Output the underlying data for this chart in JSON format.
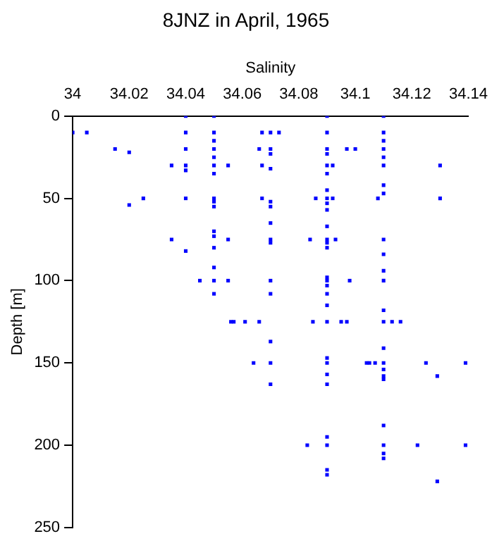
{
  "chart_data": {
    "type": "scatter",
    "title": "8JNZ in April, 1965",
    "xlabel": "Salinity",
    "ylabel": "Depth [m]",
    "xlim": [
      34,
      34.14
    ],
    "xticks": [
      34,
      34.02,
      34.04,
      34.06,
      34.08,
      34.1,
      34.12,
      34.14
    ],
    "ylim": [
      250,
      0
    ],
    "yticks": [
      0,
      50,
      100,
      150,
      200,
      250
    ],
    "grid": false,
    "legend": false,
    "marker": "square",
    "series": [
      {
        "color": "#0000ff",
        "x": [
          34.0,
          34.005,
          34.015,
          34.02,
          34.035,
          34.04,
          34.04,
          34.04,
          34.04,
          34.04,
          34.04,
          34.04,
          34.035,
          34.02,
          34.025,
          34.05,
          34.05,
          34.05,
          34.05,
          34.05,
          34.05,
          34.05,
          34.05,
          34.05,
          34.05,
          34.05,
          34.05,
          34.05,
          34.05,
          34.05,
          34.05,
          34.055,
          34.055,
          34.045,
          34.055,
          34.067,
          34.07,
          34.073,
          34.066,
          34.07,
          34.07,
          34.067,
          34.07,
          34.067,
          34.07,
          34.07,
          34.07,
          34.07,
          34.07,
          34.07,
          34.07,
          34.07,
          34.07,
          34.07,
          34.056,
          34.057,
          34.061,
          34.066,
          34.064,
          34.09,
          34.09,
          34.09,
          34.09,
          34.09,
          34.09,
          34.09,
          34.09,
          34.09,
          34.09,
          34.09,
          34.09,
          34.09,
          34.09,
          34.09,
          34.09,
          34.09,
          34.09,
          34.09,
          34.09,
          34.09,
          34.09,
          34.09,
          34.09,
          34.09,
          34.09,
          34.09,
          34.09,
          34.086,
          34.092,
          34.092,
          34.084,
          34.093,
          34.085,
          34.083,
          34.095,
          34.097,
          34.098,
          34.097,
          34.1,
          34.11,
          34.11,
          34.11,
          34.11,
          34.11,
          34.11,
          34.11,
          34.11,
          34.11,
          34.11,
          34.11,
          34.11,
          34.11,
          34.11,
          34.11,
          34.11,
          34.11,
          34.11,
          34.11,
          34.11,
          34.11,
          34.11,
          34.11,
          34.108,
          34.104,
          34.105,
          34.107,
          34.113,
          34.116,
          34.13,
          34.13,
          34.125,
          34.129,
          34.139,
          34.122,
          34.139,
          34.129
        ],
        "values": [
          10,
          10,
          20,
          22,
          30,
          0,
          10,
          20,
          30,
          33,
          50,
          82,
          75,
          54,
          50,
          0,
          10,
          15,
          20,
          25,
          30,
          35,
          50,
          52,
          55,
          70,
          73,
          80,
          92,
          100,
          108,
          30,
          75,
          100,
          100,
          10,
          10,
          10,
          20,
          20,
          23,
          30,
          32,
          50,
          52,
          55,
          65,
          75,
          77,
          100,
          108,
          137,
          150,
          163,
          125,
          125,
          125,
          125,
          150,
          0,
          10,
          20,
          23,
          30,
          35,
          45,
          50,
          53,
          57,
          67,
          75,
          77,
          80,
          98,
          100,
          103,
          108,
          115,
          125,
          147,
          150,
          157,
          163,
          195,
          200,
          215,
          218,
          50,
          50,
          30,
          75,
          75,
          125,
          200,
          125,
          125,
          100,
          20,
          20,
          0,
          10,
          15,
          20,
          25,
          30,
          42,
          47,
          75,
          84,
          94,
          100,
          118,
          125,
          141,
          150,
          154,
          158,
          160,
          188,
          200,
          205,
          208,
          50,
          150,
          150,
          150,
          125,
          125,
          30,
          50,
          150,
          158,
          150,
          200,
          200,
          222
        ]
      }
    ]
  }
}
